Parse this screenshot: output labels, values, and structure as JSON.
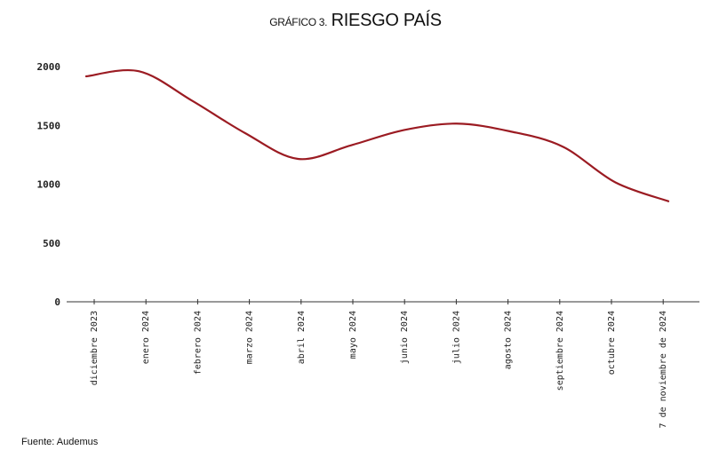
{
  "chart_data": {
    "type": "line",
    "title_prefix": "GRÁFICO 3.",
    "title": "RIESGO PAÍS",
    "xlabel": "",
    "ylabel": "",
    "categories": [
      "diciembre 2023",
      "enero 2024",
      "febrero 2024",
      "marzo 2024",
      "abril 2024",
      "mayo 2024",
      "junio 2024",
      "julio 2024",
      "agosto 2024",
      "septiembre 2024",
      "octubre 2024",
      "7 de noviembre de 2024"
    ],
    "series": [
      {
        "values": [
          1917,
          1960,
          1710,
          1435,
          1215,
          1330,
          1460,
          1515,
          1450,
          1320,
          1015,
          855
        ],
        "color": "#9b1b22"
      }
    ],
    "yticks": [
      0,
      500,
      1000,
      1500,
      2000
    ],
    "ylim": [
      0,
      2000
    ],
    "grid": false,
    "legend": "none",
    "source": "Fuente: Audemus"
  }
}
